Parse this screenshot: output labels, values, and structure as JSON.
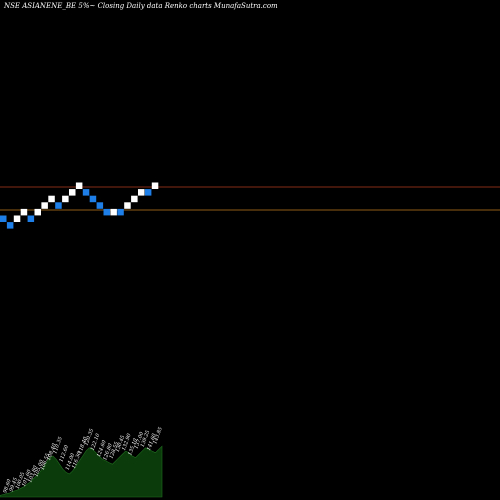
{
  "header": {
    "title": "NSE ASIANENE_BE 5%~  Closing Daily data  Renko  charts MunafaSutra.com"
  },
  "colors": {
    "background": "#000000",
    "up_brick": "#ffffff",
    "down_brick": "#1e7fe8",
    "line_upper": "#b03a1e",
    "line_lower": "#c07a1a",
    "volume_fill": "#0b3a0b",
    "volume_edge": "#1f6e1f"
  },
  "chart_data": {
    "type": "renko",
    "grid": false,
    "bricks": [
      {
        "col": 0,
        "level": 0,
        "dir": "down"
      },
      {
        "col": 1,
        "level": -1,
        "dir": "down"
      },
      {
        "col": 2,
        "level": 0,
        "dir": "up"
      },
      {
        "col": 3,
        "level": 1,
        "dir": "up"
      },
      {
        "col": 4,
        "level": 0,
        "dir": "down"
      },
      {
        "col": 5,
        "level": 1,
        "dir": "up"
      },
      {
        "col": 6,
        "level": 2,
        "dir": "up"
      },
      {
        "col": 7,
        "level": 3,
        "dir": "up"
      },
      {
        "col": 8,
        "level": 2,
        "dir": "down"
      },
      {
        "col": 9,
        "level": 3,
        "dir": "up"
      },
      {
        "col": 10,
        "level": 4,
        "dir": "up"
      },
      {
        "col": 11,
        "level": 5,
        "dir": "up"
      },
      {
        "col": 12,
        "level": 4,
        "dir": "down"
      },
      {
        "col": 13,
        "level": 3,
        "dir": "down"
      },
      {
        "col": 14,
        "level": 2,
        "dir": "down"
      },
      {
        "col": 15,
        "level": 1,
        "dir": "down"
      },
      {
        "col": 16,
        "level": 1,
        "dir": "up"
      },
      {
        "col": 17,
        "level": 1,
        "dir": "down"
      },
      {
        "col": 18,
        "level": 2,
        "dir": "up"
      },
      {
        "col": 19,
        "level": 3,
        "dir": "up"
      },
      {
        "col": 20,
        "level": 4,
        "dir": "up"
      },
      {
        "col": 21,
        "level": 4,
        "dir": "down"
      },
      {
        "col": 22,
        "level": 5,
        "dir": "up"
      }
    ],
    "lines": [
      "upper",
      "lower"
    ],
    "volume": [
      2,
      3,
      4,
      5,
      7,
      8,
      10,
      12,
      15,
      18,
      22,
      26,
      30,
      36,
      42,
      48,
      50,
      46,
      40,
      34,
      30,
      28,
      32,
      38,
      44,
      50,
      56,
      60,
      58,
      54,
      50,
      46,
      44,
      42,
      40,
      44,
      48,
      52,
      56,
      54,
      50,
      48,
      52,
      56,
      60,
      58,
      56,
      54,
      58,
      62
    ],
    "price_labels": [
      "98.60",
      "99.45",
      "100.05",
      "101.60",
      "103.80",
      "105.00",
      "106.55",
      "108.40",
      "110.35",
      "112.60",
      "114.00",
      "116.30",
      "118.40",
      "120.35",
      "122.10",
      "124.60",
      "126.80",
      "128.55",
      "130.45",
      "132.90",
      "135.10",
      "137.00",
      "139.25",
      "141.60",
      "143.85"
    ]
  }
}
